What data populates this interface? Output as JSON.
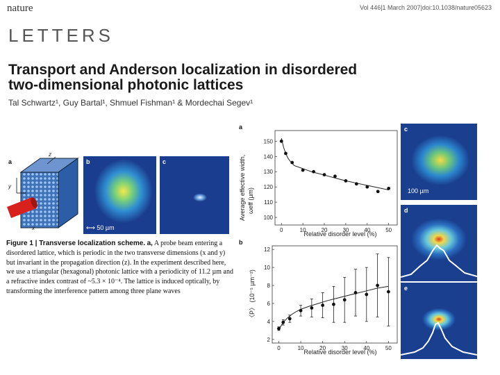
{
  "header": {
    "journal": "nature",
    "issue": "Vol 446|1 March 2007|doi:10.1038/nature05623",
    "section": "LETTERS"
  },
  "article": {
    "title_line1": "Transport and Anderson localization in disordered",
    "title_line2": "two-dimensional photonic lattices",
    "authors": "Tal Schwartz¹, Guy Bartal¹, Shmuel Fishman¹ & Mordechai Segev¹"
  },
  "figure1": {
    "panel_letters": [
      "a",
      "b",
      "c"
    ],
    "axis_labels": [
      "y",
      "x",
      "z"
    ],
    "scalebar": "50 µm",
    "caption_label": "Figure 1 | Transverse localization scheme.",
    "caption_a": "a,",
    "caption_text": "A probe beam entering a disordered lattice, which is periodic in the two transverse dimensions (x and y) but invariant in the propagation direction (z). In the experiment described here, we use a triangular (hexagonal) photonic lattice with a periodicity of 11.2 µm and a refractive index contrast of ~5.3 × 10⁻⁴. The lattice is induced optically, by transforming the interference pattern among three plane waves"
  },
  "figure2": {
    "panel_letters": [
      "a",
      "b",
      "c",
      "d",
      "e"
    ],
    "scalebar": "100 µm"
  },
  "chart_data": [
    {
      "type": "scatter",
      "panel": "a",
      "xlabel": "Relative disorder level (%)",
      "ylabel_line1": "Average effective width,",
      "ylabel_line2": "ωeff (µm)",
      "xlim": [
        -3,
        54
      ],
      "ylim": [
        95,
        157
      ],
      "x_ticks": [
        0,
        10,
        20,
        30,
        40,
        50
      ],
      "y_ticks": [
        100,
        110,
        120,
        130,
        140,
        150
      ],
      "x": [
        0,
        2,
        5,
        10,
        15,
        20,
        25,
        30,
        35,
        40,
        45,
        50
      ],
      "y": [
        150,
        142,
        136,
        131,
        130,
        128,
        127,
        124,
        122,
        120,
        117,
        119
      ],
      "fit_x": [
        0,
        1,
        2,
        3,
        4,
        6,
        8,
        10,
        14,
        18,
        22,
        26,
        30,
        35,
        40,
        45,
        50
      ],
      "fit_y": [
        152,
        146,
        142,
        139,
        137,
        134,
        133,
        132,
        130,
        128.5,
        127,
        125.5,
        124,
        122.5,
        121,
        119.5,
        118
      ],
      "grid": false
    },
    {
      "type": "scatter",
      "panel": "b",
      "xlabel": "Relative disorder level (%)",
      "ylabel": "〈P〉 (10⁻⁵ µm⁻²)",
      "xlim": [
        -3,
        54
      ],
      "ylim": [
        1.6,
        12.4
      ],
      "x_ticks": [
        0,
        10,
        20,
        30,
        40,
        50
      ],
      "y_ticks": [
        2,
        4,
        6,
        8,
        10,
        12
      ],
      "x": [
        0,
        2,
        5,
        10,
        15,
        20,
        25,
        30,
        35,
        40,
        45,
        50
      ],
      "y": [
        3.2,
        3.9,
        4.3,
        5.2,
        5.5,
        5.8,
        5.9,
        6.4,
        7.2,
        7.0,
        8.0,
        7.3
      ],
      "err": [
        0.2,
        0.3,
        0.4,
        0.6,
        1.0,
        1.4,
        2.0,
        2.5,
        2.6,
        3.0,
        3.5,
        3.8
      ],
      "fit_x": [
        0,
        1,
        2,
        4,
        6,
        8,
        10,
        14,
        18,
        22,
        26,
        30,
        35,
        40,
        45,
        50
      ],
      "fit_y": [
        3.0,
        3.5,
        3.9,
        4.4,
        4.8,
        5.1,
        5.35,
        5.7,
        6.0,
        6.3,
        6.55,
        6.8,
        7.1,
        7.4,
        7.7,
        7.9
      ],
      "grid": false
    }
  ]
}
